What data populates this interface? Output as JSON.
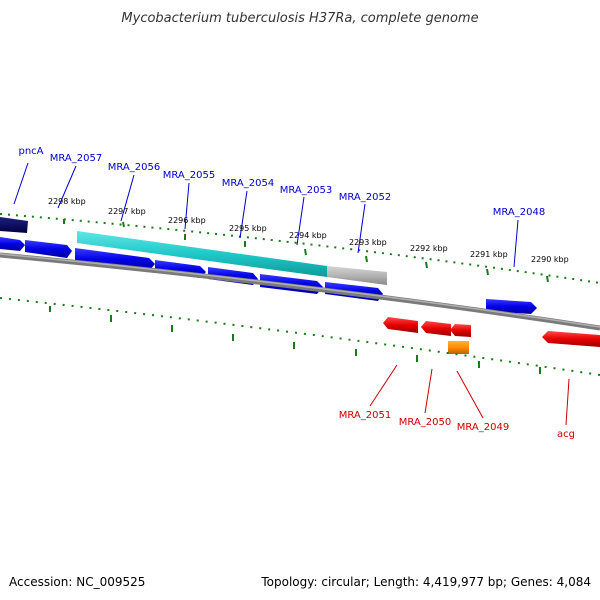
{
  "title": "Mycobacterium tuberculosis H37Ra, complete genome",
  "footer": {
    "accession": "Accession: NC_009525",
    "summary": "Topology: circular; Length: 4,419,977 bp; Genes: 4,084"
  },
  "colors": {
    "forward_gene": "#0000e6",
    "reverse_gene": "#e60000",
    "highlight_gene": "#ff8c00",
    "tick": "#1a7a1a",
    "backbone": "#808080",
    "label_forward": "#0000cc",
    "label_reverse": "#cc0000",
    "region_cyan": "#20c8c8",
    "region_grey": "#b4b4b4",
    "pncA_dark": "#000066"
  },
  "scale_labels": [
    "2298 kbp",
    "2297 kbp",
    "2296 kbp",
    "2295 kbp",
    "2294 kbp",
    "2293 kbp",
    "2292 kbp",
    "2291 kbp",
    "2290 kbp"
  ],
  "forward_labels": [
    "pncA",
    "MRA_2057",
    "MRA_2056",
    "MRA_2055",
    "MRA_2054",
    "MRA_2053",
    "MRA_2052",
    "MRA_2048"
  ],
  "reverse_labels": [
    "MRA_2051",
    "MRA_2050",
    "MRA_2049",
    "acg"
  ]
}
